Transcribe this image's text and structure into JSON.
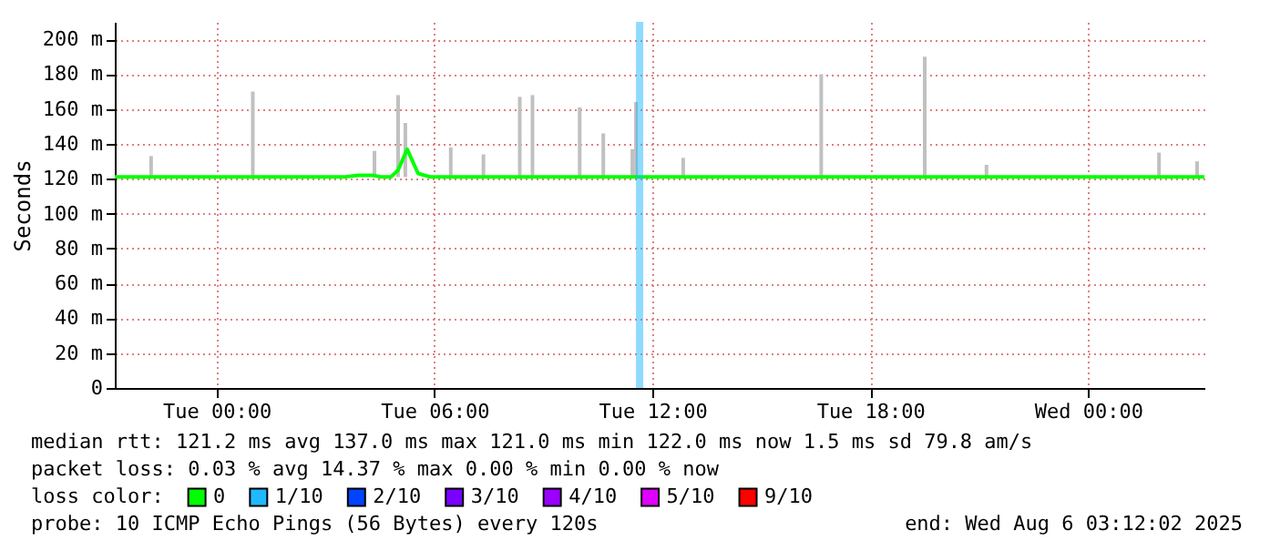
{
  "chart_data": {
    "type": "line",
    "ylabel": "Seconds",
    "xlim": [
      "2025-08-04T21:12",
      "2025-08-06T03:12"
    ],
    "xticks": [
      {
        "value": "2025-08-05T00:00",
        "label": "Tue 00:00"
      },
      {
        "value": "2025-08-05T06:00",
        "label": "Tue 06:00"
      },
      {
        "value": "2025-08-05T12:00",
        "label": "Tue 12:00"
      },
      {
        "value": "2025-08-05T18:00",
        "label": "Tue 18:00"
      },
      {
        "value": "2025-08-06T00:00",
        "label": "Wed 00:00"
      }
    ],
    "ylim": [
      0,
      210
    ],
    "yticks": [
      0,
      {
        "value": 20,
        "label": "20 m"
      },
      {
        "value": 40,
        "label": "40 m"
      },
      {
        "value": 60,
        "label": "60 m"
      },
      {
        "value": 80,
        "label": "80 m"
      },
      {
        "value": 100,
        "label": "100 m"
      },
      {
        "value": 120,
        "label": "120 m"
      },
      {
        "value": 140,
        "label": "140 m"
      },
      {
        "value": 160,
        "label": "160 m"
      },
      {
        "value": 180,
        "label": "180 m"
      },
      {
        "value": 200,
        "label": "200 m"
      }
    ],
    "grid": true,
    "legend": "bottom",
    "legend_title": "loss color:",
    "series": [
      {
        "type": "bar",
        "color": "#c0c0c0",
        "x": [
          "2025-08-04T22:12",
          "2025-08-05T01:00",
          "2025-08-05T04:21",
          "2025-08-05T05:00",
          "2025-08-05T05:12",
          "2025-08-05T06:27",
          "2025-08-05T07:21",
          "2025-08-05T08:21",
          "2025-08-05T08:42",
          "2025-08-05T10:00",
          "2025-08-05T10:39",
          "2025-08-05T11:27",
          "2025-08-05T11:33",
          "2025-08-05T12:51",
          "2025-08-05T16:39",
          "2025-08-05T19:30",
          "2025-08-05T21:12",
          "2025-08-06T01:57",
          "2025-08-06T03:00"
        ],
        "base": [
          121,
          121,
          121,
          121,
          121,
          121,
          121,
          121,
          121,
          121,
          121,
          121,
          121,
          121,
          121,
          121,
          121,
          121,
          121
        ],
        "values": [
          12,
          49,
          15,
          47,
          31,
          17,
          13,
          46,
          47,
          40,
          25,
          16,
          43,
          11,
          59,
          69,
          7,
          14,
          9
        ]
      },
      {
        "name": "0",
        "color": "#00ff00",
        "x": [
          "2025-08-04T21:12",
          "2025-08-05T03:30",
          "2025-08-05T03:54",
          "2025-08-05T04:18",
          "2025-08-05T04:33",
          "2025-08-05T04:48",
          "2025-08-05T05:00",
          "2025-08-05T05:15",
          "2025-08-05T05:24",
          "2025-08-05T05:33",
          "2025-08-05T05:54",
          "2025-08-06T03:12"
        ],
        "values": [
          121,
          121,
          122,
          122,
          121,
          121,
          125,
          137,
          130,
          123,
          121,
          121
        ]
      },
      {
        "name": "1/10",
        "type": "bar",
        "color": "#20b8ff",
        "x": [
          "2025-08-05T11:39"
        ],
        "values": [
          210
        ]
      },
      {
        "name": "2/10",
        "color": "#0044ff"
      },
      {
        "name": "3/10",
        "color": "#7a00ff"
      },
      {
        "name": "4/10",
        "color": "#9a00ff"
      },
      {
        "name": "5/10",
        "color": "#e000ff"
      },
      {
        "name": "9/10",
        "color": "#ff0000"
      }
    ],
    "annotations": [
      "median rtt:  121.2 ms avg  137.0 ms max  121.0 ms min  122.0 ms now  1.5 ms sd  79.8   am/s",
      "packet loss: 0.03 % avg  14.37 % max  0.00 % min  0.00 % now",
      "probe:       10 ICMP Echo Pings (56 Bytes) every 120s",
      "end: Wed Aug  6 03:12:02 2025"
    ]
  }
}
